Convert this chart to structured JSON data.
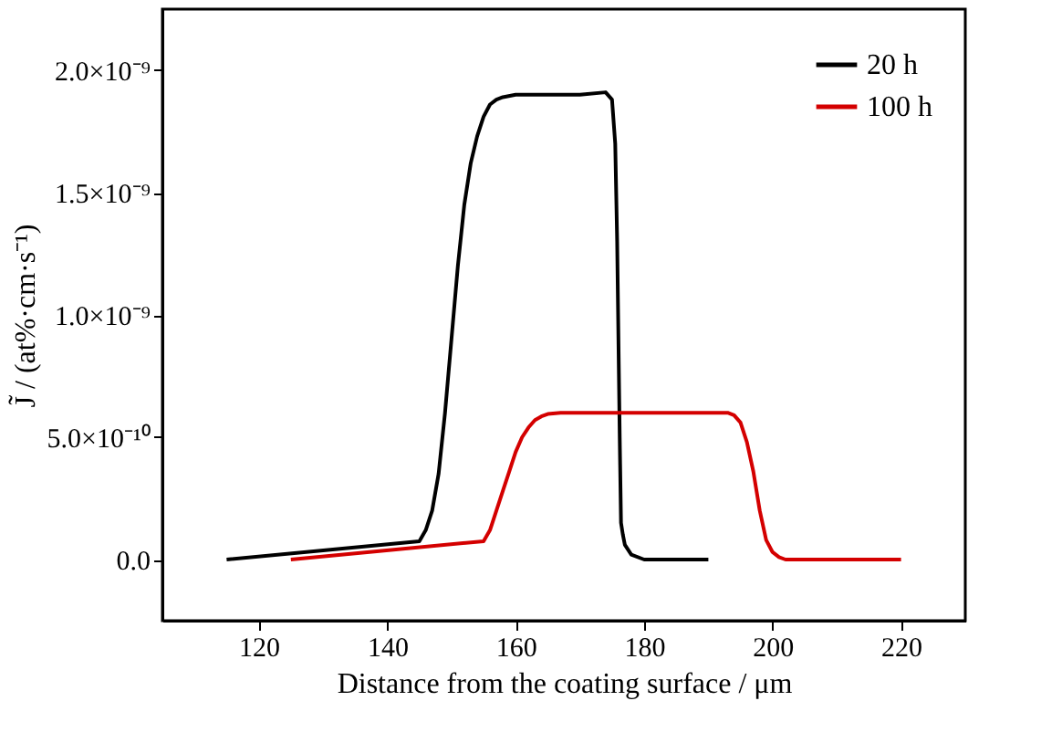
{
  "chart_data": {
    "type": "line",
    "xlabel": "Distance from the coating surface / μm",
    "ylabel": "J̃ / (at%·cm·s⁻¹)",
    "xlim": [
      105,
      230
    ],
    "xticks": [
      120,
      140,
      160,
      180,
      200,
      220
    ],
    "ylim": [
      -2.5e-10,
      2.25e-09
    ],
    "yticks": [
      {
        "value": 0,
        "label": "0.0"
      },
      {
        "value": 5e-10,
        "label": "5.0×10⁻¹⁰"
      },
      {
        "value": 1e-09,
        "label": "1.0×10⁻⁹"
      },
      {
        "value": 1.5e-09,
        "label": "1.5×10⁻⁹"
      },
      {
        "value": 2e-09,
        "label": "2.0×10⁻⁹"
      }
    ],
    "grid": false,
    "legend": "top right",
    "marker": "none",
    "line_style": "solid",
    "series": [
      {
        "name": "20 h",
        "color": "#000000",
        "x": [
          115,
          145,
          146,
          147,
          148,
          149,
          150,
          151,
          152,
          153,
          154,
          155,
          156,
          157,
          158,
          160,
          165,
          170,
          174,
          175,
          175.5,
          175.8,
          176,
          176.2,
          176.4,
          176.7,
          177,
          178,
          180,
          190
        ],
        "values": [
          0,
          7.5e-11,
          1.2e-10,
          2e-10,
          3.5e-10,
          6e-10,
          9e-10,
          1.2e-09,
          1.45e-09,
          1.62e-09,
          1.73e-09,
          1.81e-09,
          1.86e-09,
          1.88e-09,
          1.89e-09,
          1.9e-09,
          1.9e-09,
          1.9e-09,
          1.91e-09,
          1.88e-09,
          1.7e-09,
          1.3e-09,
          9e-10,
          5e-10,
          1.5e-10,
          1e-10,
          6e-11,
          2e-11,
          0,
          0
        ]
      },
      {
        "name": "100 h",
        "color": "#d40000",
        "x": [
          125,
          155,
          156,
          157,
          158,
          159,
          160,
          161,
          162,
          163,
          164,
          165,
          167,
          170,
          180,
          190,
          193,
          194,
          195,
          196,
          197,
          198,
          199,
          200,
          201,
          202,
          210,
          220
        ],
        "values": [
          0,
          7.5e-11,
          1.2e-10,
          2e-10,
          2.8e-10,
          3.6e-10,
          4.4e-10,
          5e-10,
          5.4e-10,
          5.7e-10,
          5.85e-10,
          5.95e-10,
          6e-10,
          6e-10,
          6e-10,
          6e-10,
          6e-10,
          5.9e-10,
          5.6e-10,
          4.8e-10,
          3.6e-10,
          2e-10,
          8e-11,
          3e-11,
          1e-11,
          0,
          0,
          0
        ]
      }
    ]
  }
}
